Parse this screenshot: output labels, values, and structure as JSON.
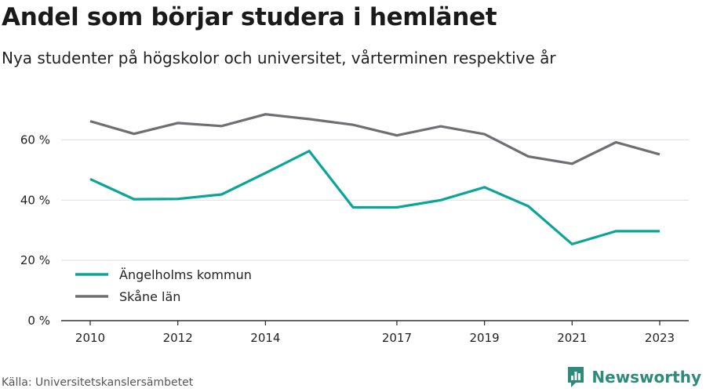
{
  "header": {
    "title": "Andel som börjar studera i hemlänet",
    "subtitle": "Nya studenter på högskolor och universitet, vårterminen respektive år"
  },
  "footer": {
    "source": "Källa: Universitetskanslersämbetet",
    "brand": "Newsworthy",
    "brand_icon": "bar-chart-logo-icon"
  },
  "colors": {
    "series_1": "#0aa596",
    "series_2": "#6f6f73",
    "grid": "#dddddd",
    "axis": "#333333",
    "brand": "#2e8b7a"
  },
  "chart_data": {
    "type": "line",
    "x_ticks": [
      2010,
      2012,
      2014,
      2017,
      2019,
      2021,
      2023
    ],
    "y_ticks": [
      0,
      20,
      40,
      60
    ],
    "y_tick_labels": [
      "0 %",
      "20 %",
      "40 %",
      "60 %"
    ],
    "xlim": [
      2010,
      2023
    ],
    "ylim": [
      0,
      70
    ],
    "grid": "horizontal",
    "legend_position": "bottom-left",
    "x": [
      2010,
      2011,
      2012,
      2013,
      2014,
      2015,
      2016,
      2017,
      2018,
      2019,
      2020,
      2021,
      2022,
      2023
    ],
    "series": [
      {
        "name": "Ängelholms kommun",
        "values": [
          47,
          40.3,
          40.4,
          41.9,
          49,
          56.3,
          37.6,
          37.6,
          40,
          44.3,
          38,
          25.4,
          29.7,
          29.7
        ]
      },
      {
        "name": "Skåne län",
        "values": [
          66.2,
          62,
          65.6,
          64.6,
          68.5,
          66.9,
          65,
          61.5,
          64.5,
          61.9,
          54.5,
          52.1,
          59.2,
          55.2
        ]
      }
    ]
  }
}
